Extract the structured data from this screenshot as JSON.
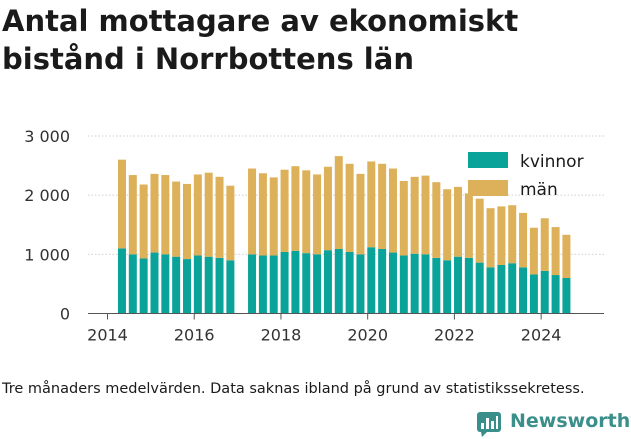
{
  "title": "Antal mottagare av ekonomiskt bistånd i Norrbottens län",
  "caption": "Tre månaders medelvärden. Data saknas ibland på grund av statistikssekretess.",
  "brand": "Newsworthy",
  "colors": {
    "kvinnor": "#0aa39a",
    "man": "#ddb05a",
    "grid": "#cfcfcf",
    "axis": "#555555",
    "brand": "#3a8f8a"
  },
  "chart_data": {
    "type": "bar",
    "stacked": true,
    "x_ticks": [
      "2014",
      "2016",
      "2018",
      "2020",
      "2022",
      "2024"
    ],
    "y_ticks": [
      "0",
      "1 000",
      "2 000",
      "3 000"
    ],
    "ylim": [
      0,
      3000
    ],
    "grid": true,
    "legend_position": "top-right",
    "x": [
      "2014-05",
      "2014-08",
      "2014-11",
      "2015-02",
      "2015-05",
      "2015-08",
      "2015-11",
      "2016-02",
      "2016-05",
      "2016-08",
      "2016-11",
      "2017-05",
      "2017-08",
      "2017-11",
      "2018-02",
      "2018-05",
      "2018-08",
      "2018-11",
      "2019-02",
      "2019-05",
      "2019-08",
      "2019-11",
      "2020-02",
      "2020-05",
      "2020-08",
      "2020-11",
      "2021-02",
      "2021-05",
      "2021-08",
      "2021-11",
      "2022-02",
      "2022-05",
      "2022-08",
      "2022-11",
      "2023-02",
      "2023-05",
      "2023-08",
      "2023-11",
      "2024-02",
      "2024-05",
      "2024-08"
    ],
    "series": [
      {
        "name": "kvinnor",
        "values": [
          1100,
          1000,
          930,
          1030,
          1000,
          960,
          920,
          980,
          960,
          940,
          900,
          1000,
          980,
          980,
          1040,
          1060,
          1020,
          1000,
          1070,
          1090,
          1040,
          1000,
          1120,
          1090,
          1030,
          980,
          1010,
          1000,
          940,
          900,
          960,
          940,
          860,
          780,
          820,
          850,
          780,
          660,
          720,
          650,
          600
        ]
      },
      {
        "name": "män",
        "values": [
          1500,
          1340,
          1250,
          1330,
          1340,
          1270,
          1270,
          1370,
          1420,
          1370,
          1260,
          1450,
          1390,
          1320,
          1390,
          1430,
          1400,
          1350,
          1410,
          1570,
          1490,
          1360,
          1450,
          1440,
          1420,
          1260,
          1300,
          1330,
          1280,
          1200,
          1180,
          1090,
          1080,
          1000,
          990,
          980,
          920,
          790,
          890,
          810,
          730
        ]
      }
    ]
  }
}
